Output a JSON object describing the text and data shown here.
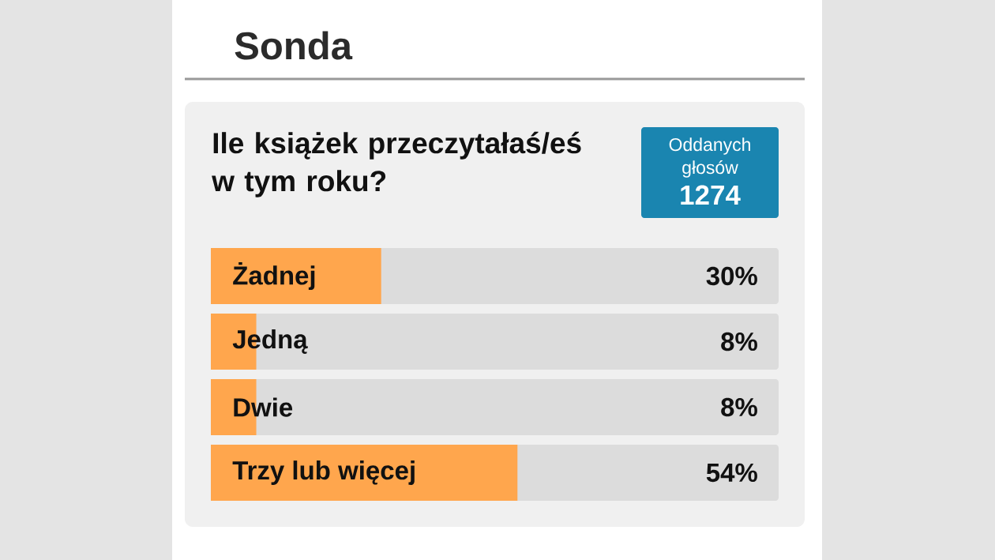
{
  "chart_data": {
    "type": "bar",
    "orientation": "horizontal",
    "title": "Sonda",
    "subtitle": "Ile książek przeczytałaś/eś w tym roku?",
    "categories": [
      "Żadnej",
      "Jedną",
      "Dwie",
      "Trzy lub więcej"
    ],
    "values": [
      30,
      8,
      8,
      54
    ],
    "value_labels": [
      "30%",
      "8%",
      "8%",
      "54%"
    ],
    "color": "#ffa64d",
    "xlim": [
      0,
      100
    ],
    "tick_labels": "y",
    "annotations": [
      "Oddanych głosów",
      "1274"
    ]
  }
}
